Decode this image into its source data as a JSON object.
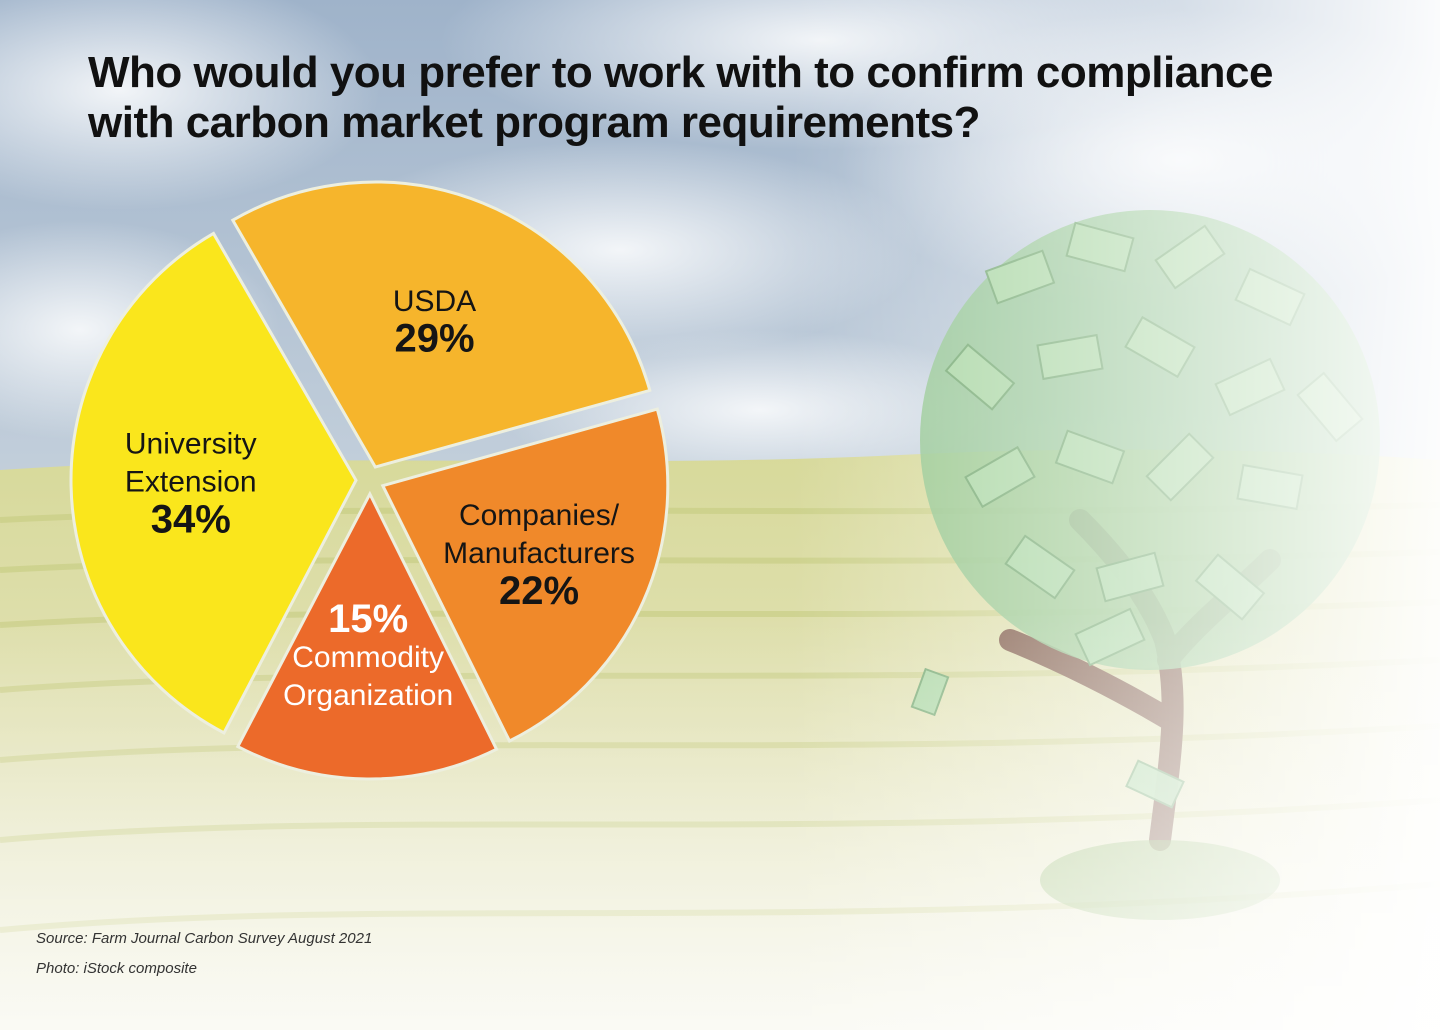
{
  "title_lines": [
    "Who would you prefer to work with to confirm compliance",
    "with carbon market program requirements?"
  ],
  "chart_data": {
    "type": "pie",
    "title": "Who would you prefer to work with to confirm compliance with carbon market program requirements?",
    "slices": [
      {
        "label_lines": [
          "USDA"
        ],
        "value": 29,
        "value_label": "29%",
        "color": "#F6B52C",
        "value_first": false
      },
      {
        "label_lines": [
          "Companies/",
          "Manufacturers"
        ],
        "value": 22,
        "value_label": "22%",
        "color": "#F0892A",
        "value_first": false
      },
      {
        "label_lines": [
          "Commodity",
          "Organization"
        ],
        "value": 15,
        "value_label": "15%",
        "color": "#EC6A2A",
        "value_first": true
      },
      {
        "label_lines": [
          "University",
          "Extension"
        ],
        "value": 34,
        "value_label": "34%",
        "color": "#FAE61C",
        "value_first": false
      }
    ]
  },
  "footnotes": {
    "source": "Source: Farm Journal Carbon Survey August 2021",
    "photo": "Photo: iStock composite"
  },
  "colors": {
    "sky_top": "#9EB4CC",
    "sky_cloud": "#E9EEF3",
    "field": "#D9DC9A",
    "field_dark": "#B9C06E",
    "tree_leaf": "#8FC48C",
    "tree_trunk": "#7A5440"
  }
}
